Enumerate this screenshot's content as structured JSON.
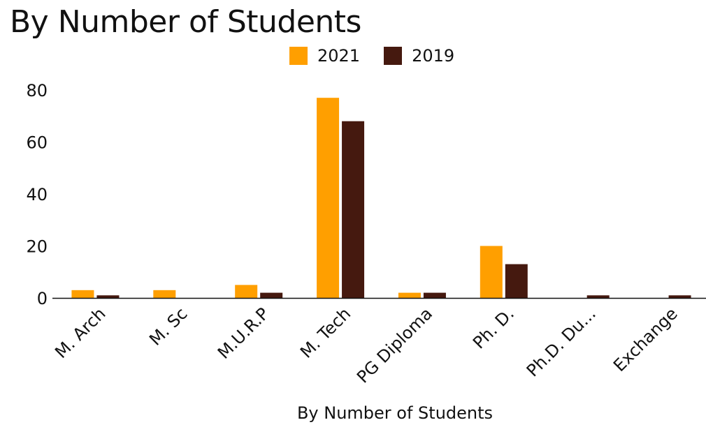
{
  "chart_data": {
    "type": "bar",
    "title": "By Number of Students",
    "xlabel": "By Number of Students",
    "ylabel": "",
    "ylim": [
      0,
      80
    ],
    "yticks": [
      0,
      20,
      40,
      60,
      80
    ],
    "grid": false,
    "legend_position": "top",
    "categories": [
      "M. Arch",
      "M. Sc",
      "M.U.R.P",
      "M. Tech",
      "PG Diploma",
      "Ph. D.",
      "Ph.D. Du...",
      "Exchange"
    ],
    "series": [
      {
        "name": "2021",
        "color": "#ff9f00",
        "values": [
          3,
          3,
          5,
          77,
          2,
          20,
          0,
          0
        ]
      },
      {
        "name": "2019",
        "color": "#45190f",
        "values": [
          1,
          0,
          2,
          68,
          2,
          13,
          1,
          1
        ]
      }
    ]
  }
}
